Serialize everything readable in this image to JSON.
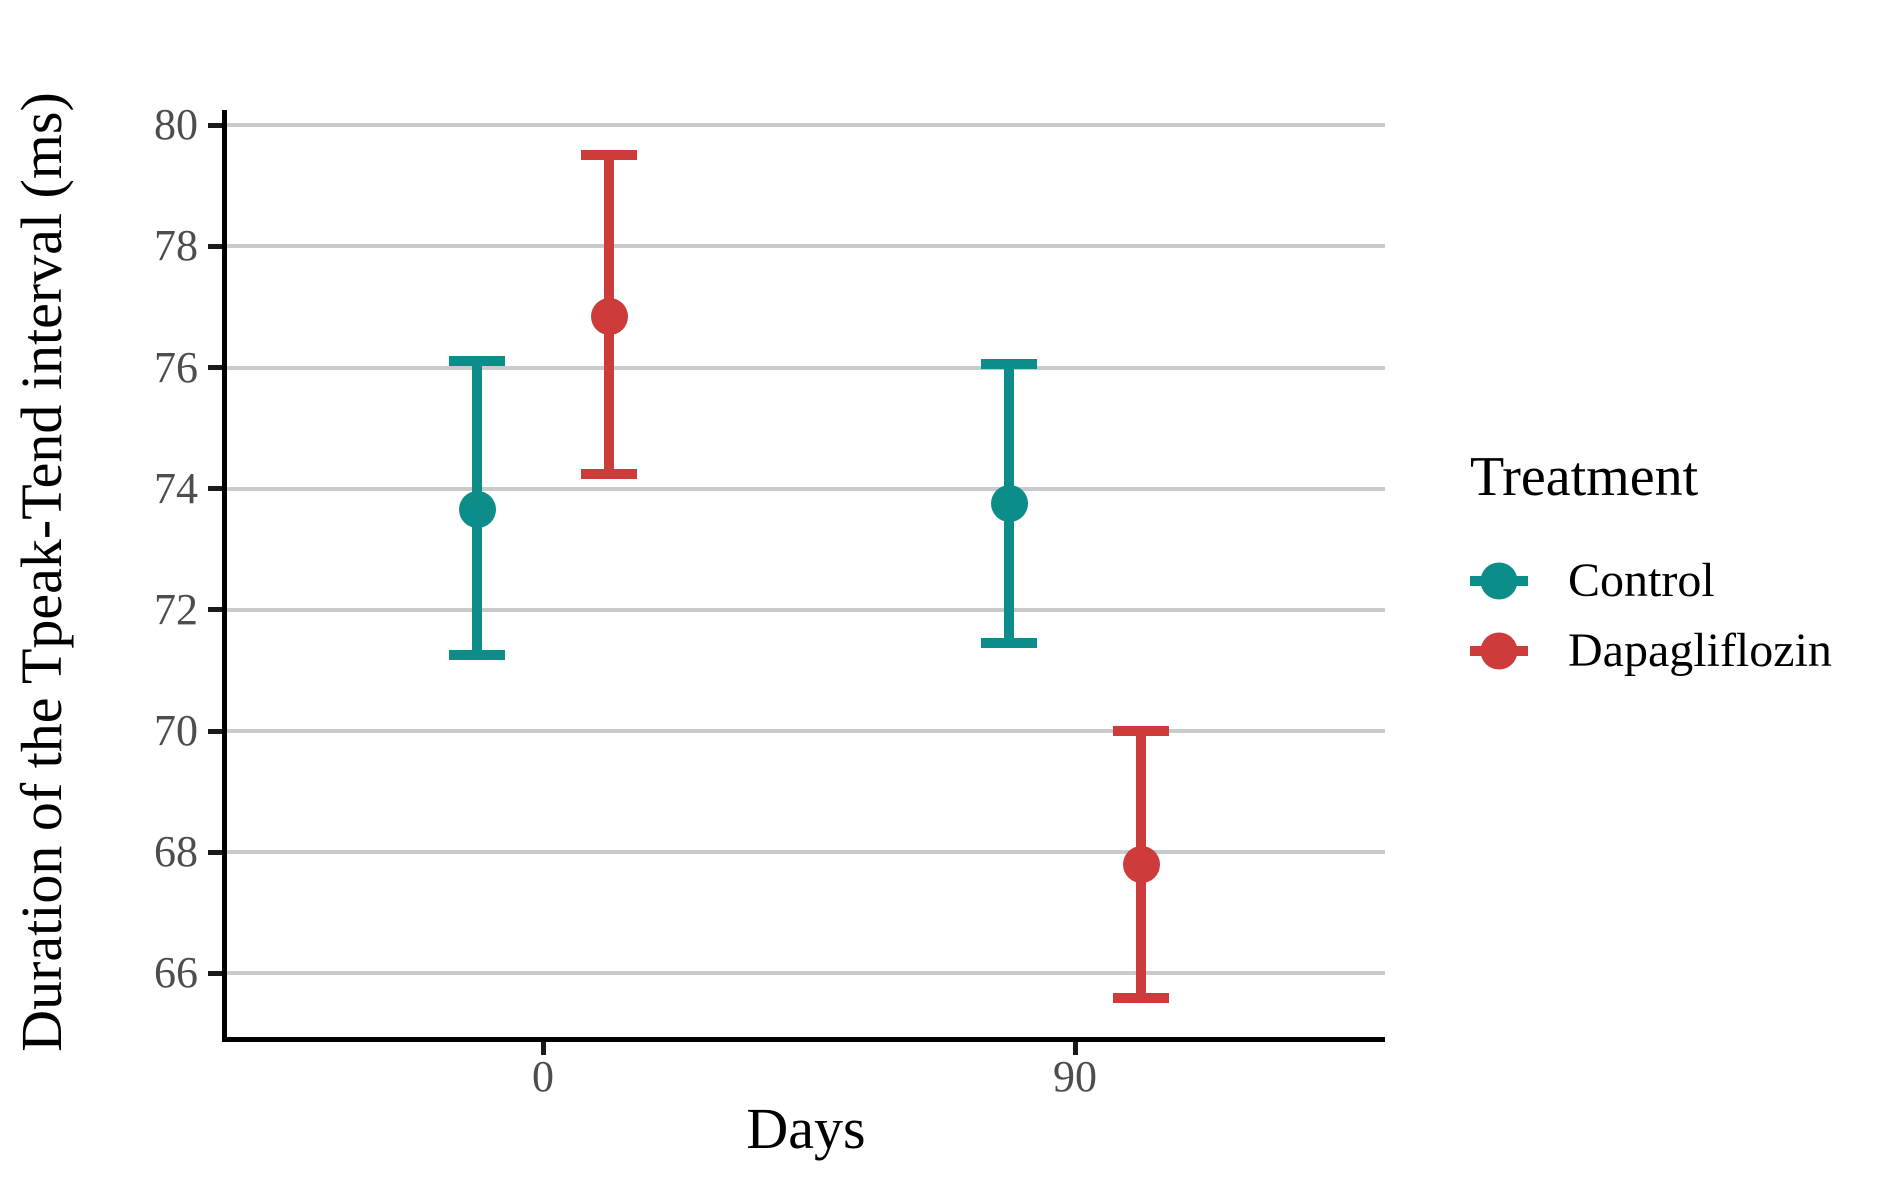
{
  "chart_data": {
    "type": "pointrange",
    "title": "",
    "xlabel": "Days",
    "ylabel": "Duration of the Tpeak-Tend interval (ms)",
    "legend_title": "Treatment",
    "legend_position": "right-center",
    "grid": "horizontal-only",
    "categories": [
      "0",
      "90"
    ],
    "yticks": [
      66,
      68,
      70,
      72,
      74,
      76,
      78,
      80
    ],
    "ylim": [
      64.95,
      80.25
    ],
    "series": [
      {
        "name": "Control",
        "color": "#0D8D89",
        "points": [
          {
            "x": "0",
            "mean": 73.65,
            "lower": 71.25,
            "upper": 76.1
          },
          {
            "x": "90",
            "mean": 73.75,
            "lower": 71.45,
            "upper": 76.05
          }
        ]
      },
      {
        "name": "Dapagliflozin",
        "color": "#CE3B3B",
        "points": [
          {
            "x": "0",
            "mean": 76.85,
            "lower": 74.25,
            "upper": 79.5
          },
          {
            "x": "90",
            "mean": 67.8,
            "lower": 65.6,
            "upper": 70.0
          }
        ]
      }
    ]
  }
}
